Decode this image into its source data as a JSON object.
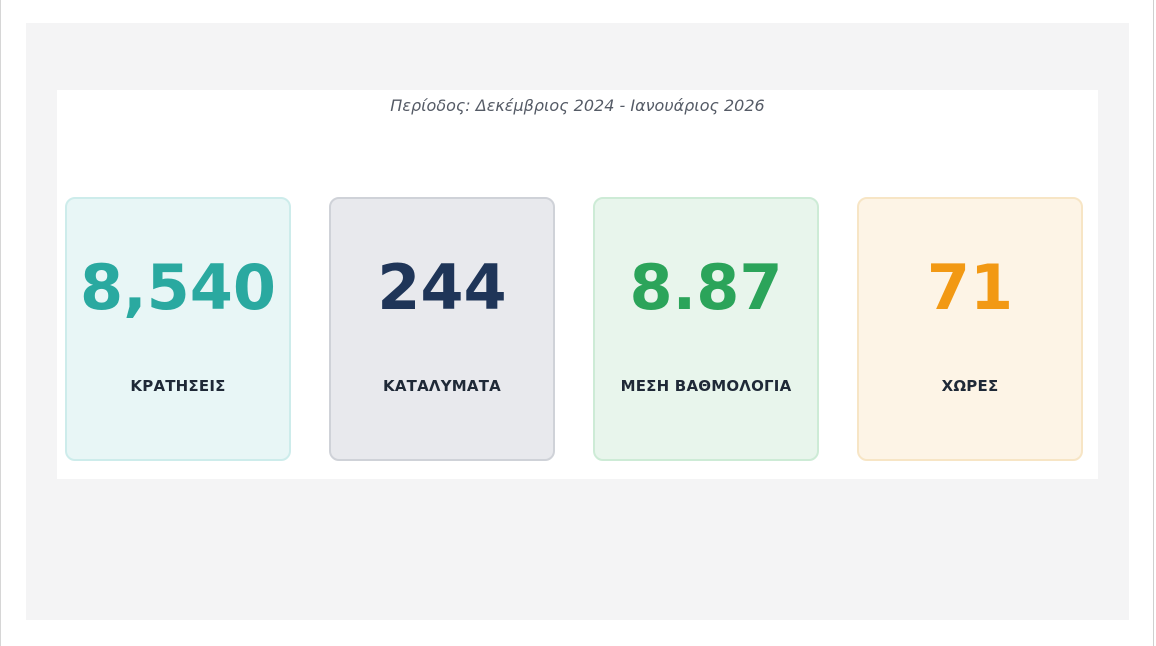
{
  "report": {
    "period": "Περίοδος: Δεκέμβριος 2024 - Ιανουάριος 2026"
  },
  "stats": [
    {
      "value": "8,540",
      "label": "ΚΡΑΤΗΣΕΙΣ",
      "color": "#2aa9a0"
    },
    {
      "value": "244",
      "label": "ΚΑΤΑΛΥΜΑΤΑ",
      "color": "#1f3558"
    },
    {
      "value": "8.87",
      "label": "ΜΕΣΗ ΒΑΘΜΟΛΟΓΙΑ",
      "color": "#2ba45a"
    },
    {
      "value": "71",
      "label": "ΧΩΡΕΣ",
      "color": "#f29914"
    }
  ]
}
